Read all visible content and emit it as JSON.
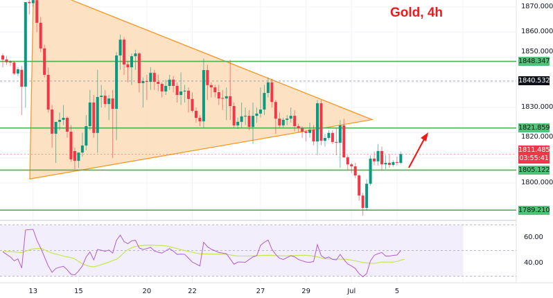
{
  "chart_title": "Gold, 4h",
  "colors": {
    "up": "#089981",
    "down": "#f23645",
    "level": "#4caf50",
    "triangle_stroke": "#f7931a",
    "triangle_fill": "#fddcb8",
    "rsi": "#b35ad6",
    "rsi_ma": "#c3e84c",
    "arrow": "#f11a1a"
  },
  "price_axis": {
    "labels": [
      "1870.000",
      "1860.000",
      "1850.000",
      "1830.000",
      "1820.000",
      "1800.000"
    ],
    "ticks": [
      1870,
      1860,
      1850,
      1830,
      1820,
      1800
    ]
  },
  "levels": [
    {
      "price": 1848.347,
      "label": "1848.347"
    },
    {
      "price": 1821.859,
      "label": "1821.859"
    },
    {
      "price": 1805.122,
      "label": "1805.122"
    },
    {
      "price": 1789.21,
      "label": "1789.210"
    }
  ],
  "marker_price": {
    "price": 1840.532,
    "label": "1840.532"
  },
  "last_price": {
    "price": 1811.485,
    "label": "1811.485",
    "countdown": "03:55:41"
  },
  "rsi_axis": {
    "labels": [
      "60.00",
      "40.00"
    ],
    "ticks": [
      60,
      40
    ],
    "bands": [
      70,
      50,
      30
    ]
  },
  "x_axis": {
    "labels": [
      "13",
      "15",
      "20",
      "22",
      "27",
      "29",
      "Jul",
      "5"
    ],
    "candle_index": [
      8,
      20,
      38,
      50,
      68,
      80,
      92,
      104
    ]
  },
  "chart_data": {
    "type": "candlestick",
    "ohlc": [
      [
        1850.7,
        1851.5,
        1846,
        1849.1
      ],
      [
        1849.1,
        1850.5,
        1847,
        1848
      ],
      [
        1848.2,
        1848.8,
        1846.5,
        1847.9
      ],
      [
        1847.9,
        1848.5,
        1843,
        1843.5
      ],
      [
        1843.5,
        1846,
        1842.5,
        1845.2
      ],
      [
        1845,
        1846.5,
        1827,
        1838.3
      ],
      [
        1838.3,
        1872,
        1830,
        1871.9
      ],
      [
        1872,
        1874,
        1867,
        1871.5
      ],
      [
        1871.5,
        1874,
        1870,
        1872.7
      ],
      [
        1872.7,
        1874,
        1860,
        1863.7
      ],
      [
        1863.7,
        1866,
        1852,
        1853.5
      ],
      [
        1853.5,
        1855,
        1842,
        1843
      ],
      [
        1843,
        1846,
        1828,
        1829.2
      ],
      [
        1829.2,
        1831,
        1814,
        1819.6
      ],
      [
        1819.6,
        1823.5,
        1808,
        1824.3
      ],
      [
        1824.3,
        1828,
        1821,
        1825.1
      ],
      [
        1825.1,
        1831,
        1823,
        1825.9
      ],
      [
        1825.9,
        1826.5,
        1818,
        1820.4
      ],
      [
        1820.4,
        1823,
        1808.5,
        1809.4
      ],
      [
        1812.7,
        1814,
        1805.5,
        1808.8
      ],
      [
        1808.8,
        1812,
        1806,
        1812.1
      ],
      [
        1812.1,
        1820,
        1810.5,
        1814.9
      ],
      [
        1814.9,
        1827,
        1813,
        1822.6
      ],
      [
        1822.6,
        1837,
        1821,
        1832
      ],
      [
        1832,
        1835,
        1818,
        1819.9
      ],
      [
        1819.9,
        1845,
        1812,
        1834.2
      ],
      [
        1834.2,
        1839,
        1830,
        1834.7
      ],
      [
        1834.7,
        1837,
        1830,
        1831.4
      ],
      [
        1831.4,
        1835,
        1825,
        1833.6
      ],
      [
        1833.6,
        1837,
        1810,
        1829.5
      ],
      [
        1829.5,
        1852,
        1817,
        1850.7
      ],
      [
        1850.7,
        1859,
        1845,
        1857
      ],
      [
        1857,
        1858,
        1843,
        1847.1
      ],
      [
        1847.1,
        1848.5,
        1840,
        1846
      ],
      [
        1846,
        1851.5,
        1839,
        1850.4
      ],
      [
        1850.4,
        1853,
        1845,
        1851.5
      ],
      [
        1851.5,
        1852,
        1836,
        1839.7
      ],
      [
        1839.7,
        1842,
        1830,
        1840.5
      ],
      [
        1840.5,
        1843,
        1833,
        1840.2
      ],
      [
        1840.2,
        1846,
        1837,
        1843.8
      ],
      [
        1843.8,
        1845,
        1837,
        1840.2
      ],
      [
        1840.2,
        1843,
        1836.5,
        1839.4
      ],
      [
        1839.4,
        1840,
        1834,
        1836.4
      ],
      [
        1836.4,
        1841,
        1835,
        1838.6
      ],
      [
        1838.6,
        1843,
        1837,
        1841.1
      ],
      [
        1841.1,
        1842.5,
        1836,
        1838.6
      ],
      [
        1838.6,
        1840,
        1832,
        1835
      ],
      [
        1835,
        1844,
        1831,
        1836.4
      ],
      [
        1836.4,
        1839,
        1832,
        1836.7
      ],
      [
        1836.7,
        1838,
        1828,
        1833.4
      ],
      [
        1833.4,
        1836,
        1828,
        1828.7
      ],
      [
        1828.7,
        1830,
        1824,
        1825.9
      ],
      [
        1825.9,
        1827,
        1822.5,
        1824.5
      ],
      [
        1824.5,
        1849.5,
        1822,
        1844.9
      ],
      [
        1844.9,
        1847,
        1833,
        1838.9
      ],
      [
        1838.9,
        1840,
        1834,
        1838
      ],
      [
        1838,
        1839,
        1834,
        1836.1
      ],
      [
        1836.1,
        1839,
        1831,
        1833.6
      ],
      [
        1833.8,
        1837,
        1829,
        1833.6
      ],
      [
        1833.6,
        1838,
        1825,
        1834.5
      ],
      [
        1834.5,
        1849,
        1825,
        1830.6
      ],
      [
        1830.6,
        1832,
        1822,
        1822.9
      ],
      [
        1822.9,
        1826,
        1821.5,
        1824.3
      ],
      [
        1824.3,
        1832,
        1822,
        1826.5
      ],
      [
        1826.5,
        1830,
        1823,
        1826.7
      ],
      [
        1826.7,
        1829,
        1821,
        1822.3
      ],
      [
        1822.3,
        1832,
        1815.5,
        1826.7
      ],
      [
        1826.7,
        1830,
        1824,
        1827.6
      ],
      [
        1827.6,
        1838,
        1826,
        1829.2
      ],
      [
        1829.2,
        1839,
        1827,
        1835.8
      ],
      [
        1835.8,
        1842,
        1834,
        1840
      ],
      [
        1840,
        1841.5,
        1830,
        1832.2
      ],
      [
        1832.2,
        1833,
        1819.5,
        1825.6
      ],
      [
        1825.6,
        1828,
        1822,
        1822.9
      ],
      [
        1822.9,
        1826,
        1822,
        1825.1
      ],
      [
        1825.1,
        1827,
        1823,
        1825.6
      ],
      [
        1825.6,
        1830,
        1824,
        1826.7
      ],
      [
        1826.7,
        1829,
        1820.5,
        1822.6
      ],
      [
        1822.6,
        1823.5,
        1820,
        1821.8
      ],
      [
        1821.8,
        1822.5,
        1818,
        1820.4
      ],
      [
        1820.4,
        1821,
        1816.5,
        1819.9
      ],
      [
        1819.9,
        1824,
        1818,
        1821.2
      ],
      [
        1821.2,
        1823,
        1815,
        1816.5
      ],
      [
        1816.5,
        1833,
        1811,
        1831.7
      ],
      [
        1831.7,
        1833,
        1815,
        1816.8
      ],
      [
        1816.8,
        1819.5,
        1814.5,
        1817.9
      ],
      [
        1817.9,
        1821,
        1817,
        1819.9
      ],
      [
        1819.9,
        1821,
        1815.5,
        1816.3
      ],
      [
        1816.3,
        1822,
        1811,
        1816
      ],
      [
        1816,
        1825,
        1806,
        1822.9
      ],
      [
        1822.9,
        1825.5,
        1810,
        1810.2
      ],
      [
        1810.2,
        1811,
        1805,
        1807.4
      ],
      [
        1807.4,
        1808,
        1804,
        1806.6
      ],
      [
        1806.6,
        1808,
        1802,
        1803
      ],
      [
        1803,
        1803.5,
        1793,
        1795
      ],
      [
        1795,
        1796,
        1787,
        1790.1
      ],
      [
        1790.1,
        1801.5,
        1789,
        1799.7
      ],
      [
        1799.7,
        1811,
        1799,
        1809.7
      ],
      [
        1809.7,
        1812.5,
        1807,
        1808.6
      ],
      [
        1808.6,
        1815.5,
        1807,
        1812.7
      ],
      [
        1812.7,
        1814.5,
        1805,
        1807.4
      ],
      [
        1807.4,
        1811,
        1805.5,
        1808
      ],
      [
        1808,
        1811.5,
        1806,
        1807.2
      ],
      [
        1807.2,
        1809,
        1806.5,
        1808.3
      ],
      [
        1808.3,
        1810.5,
        1807,
        1808
      ],
      [
        1808,
        1812.5,
        1807.5,
        1811.5
      ]
    ],
    "triangle_prices": {
      "apex_left_low": 1801.6,
      "upper_end": 1825.2,
      "upper_start": 1872.5
    },
    "rsi": [
      49,
      47,
      45,
      42,
      43.5,
      36.4,
      66,
      66.3,
      66.5,
      58,
      52,
      45,
      38,
      33,
      36,
      37,
      37.7,
      35,
      31.5,
      31,
      34,
      38,
      45,
      48.9,
      42.7,
      50.8,
      50.2,
      49.4,
      50.4,
      48,
      58,
      62,
      57,
      55.3,
      57.5,
      58,
      52,
      50.8,
      51.5,
      52.5,
      49.6,
      48.7,
      48,
      49.8,
      51.5,
      49.5,
      47,
      47.2,
      47,
      44,
      41,
      39.5,
      38,
      56.4,
      53,
      51,
      49.8,
      48.5,
      48,
      47.5,
      43.5,
      39.3,
      41,
      41,
      40.8,
      43,
      45,
      46,
      54,
      56.5,
      58.2,
      51,
      47,
      44,
      43,
      44.5,
      46,
      45,
      43,
      42,
      41,
      40.8,
      41.4,
      54.6,
      46,
      44,
      45,
      43,
      42.7,
      47,
      43,
      39.5,
      38,
      36,
      32,
      29.5,
      32,
      42,
      46.3,
      47.5,
      48.5,
      45.7,
      45.7,
      46.2,
      46.5,
      50
    ],
    "rsi_ma": [
      49.3,
      49.3,
      49.2,
      49,
      48.6,
      48.4,
      49.5,
      50.5,
      51.2,
      51.5,
      51.6,
      50.5,
      49.2,
      48,
      47.2,
      46.5,
      45.7,
      45,
      44.5,
      43.5,
      41.5,
      39.8,
      38.5,
      37.6,
      37.3,
      38,
      39,
      40,
      41,
      42.2,
      43.2,
      45.5,
      48.5,
      50.7,
      52.2,
      53.2,
      53.6,
      54,
      54.2,
      54.2,
      54.1,
      54,
      53.9,
      53.6,
      53,
      52.3,
      51.5,
      50.7,
      50,
      49.3,
      48.7,
      48,
      47.5,
      47.4,
      47.3,
      47.3,
      47.2,
      47.2,
      47.1,
      47.1,
      46.6,
      46,
      45.7,
      45.7,
      45.7,
      45.7,
      45.8,
      46,
      46.1,
      46.2,
      46.3,
      46.2,
      46,
      45.8,
      45.8,
      45.8,
      46,
      46.1,
      46.2,
      46.3,
      46.3,
      46,
      45.6,
      45.1,
      44.3,
      43.6,
      43.5,
      43.4,
      43.3,
      43.2,
      43.2,
      43,
      42.5,
      42,
      41.3,
      40.6,
      40.4,
      40.1,
      40,
      40.5,
      41,
      41,
      41,
      41,
      41.5,
      42.5,
      43.2
    ]
  }
}
